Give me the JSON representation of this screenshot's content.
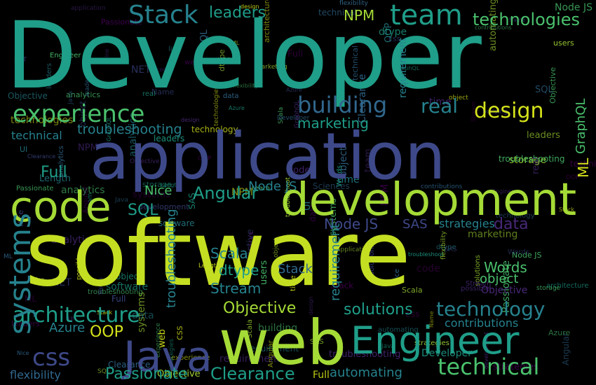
{
  "palette": {
    "background": "#000000",
    "yellow": "#d4e21a",
    "lime": "#a5db36",
    "green": "#4ac16d",
    "teal": "#1f9e89",
    "cyan": "#26828e",
    "blue": "#31688e",
    "indigo": "#3e4989",
    "purple": "#482878",
    "violet": "#440154"
  },
  "words": {
    "big": {
      "developer": "Developer",
      "software": "software",
      "application": "application",
      "development": "development",
      "web": "web",
      "engineer": "Engineer",
      "code": "code",
      "java": "Java",
      "team": "team",
      "experience": "experience",
      "building": "building",
      "design": "design",
      "stack": "Stack",
      "systems": "systems",
      "architecture": "architecture",
      "technology": "technology",
      "technical": "technical",
      "css": "css",
      "clearance": "Clearance",
      "passionate": "Passionate",
      "objective": "Objective",
      "solutions": "solutions",
      "angular": "Angular",
      "node_js": "Node JS",
      "full": "Full",
      "sql": "SQL",
      "scala": "Scala",
      "stream": "Stream",
      "dtype": "dtype",
      "words": "Words",
      "oop": "OOP",
      "npm": "NPM",
      "real": "real",
      "marketing": "marketing",
      "ml": "ML",
      "graphql": "GraphQL",
      "troubleshooting": "troubleshooting",
      "length": "Length",
      "sciences": "Sciences",
      "technologies": "technologies",
      "data": "data",
      "ui": "UI",
      "leaders": "leaders",
      "analytics": "analytics",
      "flexibility": "flexibility",
      "automating": "automating",
      "contributions": "contributions",
      "object": "object",
      "azure": "Azure",
      "time": "time",
      "name": "Name",
      "nice": "Nice",
      "net": "NET",
      "sas": "SAS",
      "users": "users",
      "storage": "storage",
      "line": "line",
      "strategies": "strategies",
      "possible": "possible",
      "requirement": "requirement"
    },
    "filler": [
      "analytics",
      "object",
      "Azure",
      "Passionate",
      "Objective",
      "SQL",
      "troubleshooting",
      "systems",
      "dtype",
      "Clearance",
      "team",
      "Name",
      "strategies",
      "technical",
      "Nice",
      "Words",
      "time",
      "NET",
      "data",
      "design",
      "Length",
      "Stream",
      "ML",
      "users",
      "leaders",
      "GraphQL",
      "SAS",
      "NPM",
      "storage",
      "Full",
      "Stack",
      "code",
      "Angular",
      "Java",
      "UI",
      "css",
      "OOP",
      "Scala",
      "line",
      "flexibility",
      "automating",
      "contributions",
      "requirement",
      "possible",
      "web",
      "software",
      "technology",
      "solutions",
      "Engineer",
      "building",
      "real",
      "marketing",
      "Developer",
      "application",
      "architecture",
      "Sciences",
      "development",
      "technologies",
      "experience",
      "Objective",
      "troubleshoot",
      "leaders",
      "analytics",
      "Node JS",
      "object"
    ]
  }
}
